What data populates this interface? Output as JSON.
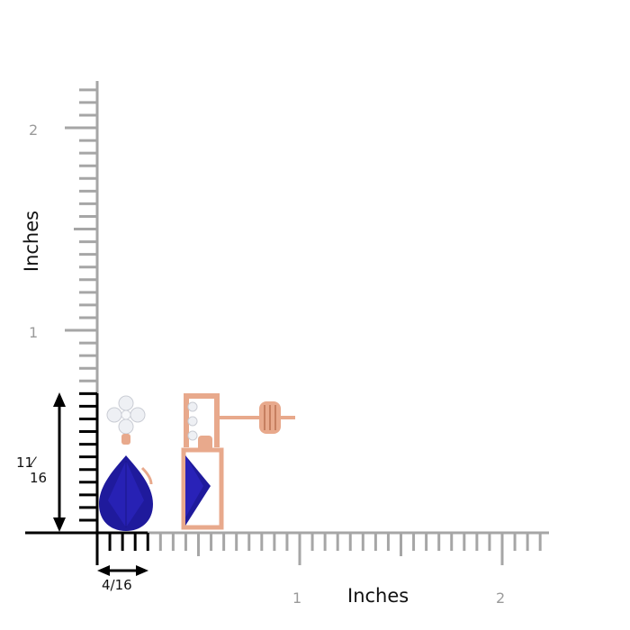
{
  "ruler": {
    "y_axis_title": "Inches",
    "x_axis_title": "Inches",
    "y_tick_labels": [
      "2",
      "1"
    ],
    "x_tick_labels": [
      "1",
      "2"
    ],
    "ruler_color": "#a6a6a6",
    "measure_color": "#000000"
  },
  "measurements": {
    "height_numerator": "11",
    "height_denominator": "16",
    "width_label": "4/16"
  },
  "product": {
    "gem_color": "#1f1a9c",
    "metal_color": "#e8a98c",
    "diamond_color": "#eef0f4"
  }
}
